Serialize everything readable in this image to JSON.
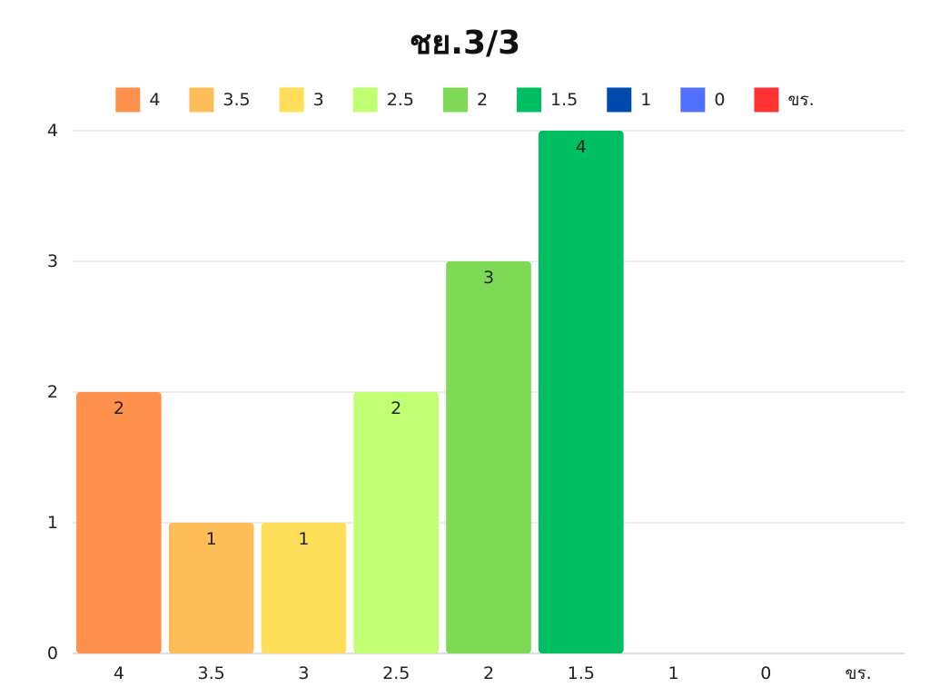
{
  "chart_data": {
    "type": "bar",
    "title": "ชย.3/3",
    "xlabel": "",
    "ylabel": "",
    "categories": [
      "4",
      "3.5",
      "3",
      "2.5",
      "2",
      "1.5",
      "1",
      "0",
      "ขร."
    ],
    "values": [
      2,
      1,
      1,
      2,
      3,
      4,
      0,
      0,
      0
    ],
    "colors": [
      "#ff914d",
      "#ffbd59",
      "#ffde59",
      "#c1ff72",
      "#7ed957",
      "#00bf63",
      "#004aad",
      "#5170ff",
      "#ff3131"
    ],
    "ylim": [
      0,
      4
    ],
    "yticks": [
      0,
      1,
      2,
      3,
      4
    ],
    "grid": true,
    "legend_position": "top",
    "data_labels": true
  }
}
